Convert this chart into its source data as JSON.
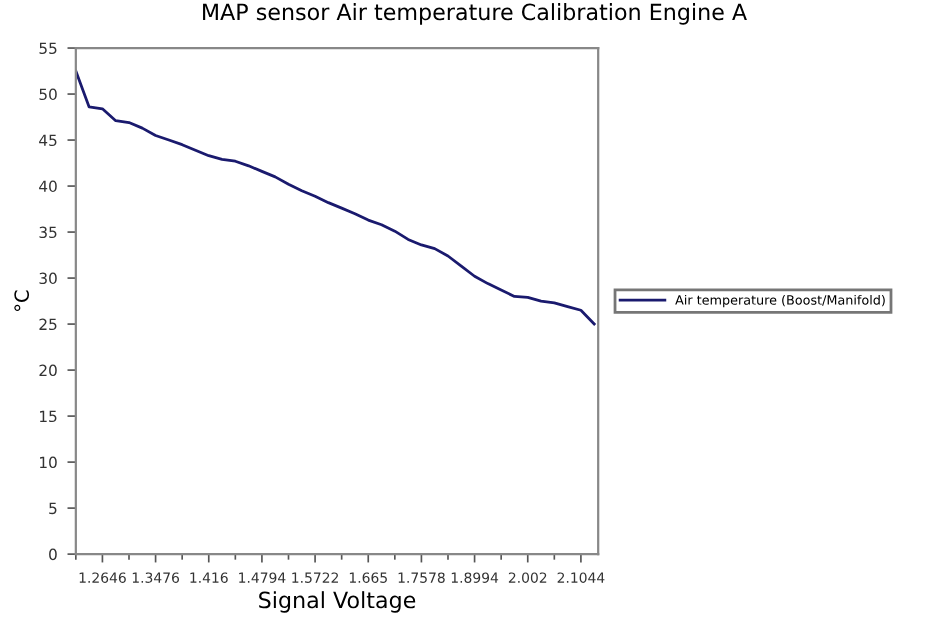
{
  "chart_data": {
    "type": "line",
    "title": "MAP sensor Air temperature Calibration Engine A",
    "xlabel": "Signal Voltage",
    "ylabel": "°C",
    "categories": [
      null,
      null,
      "1.2646",
      null,
      null,
      null,
      "1.3476",
      null,
      null,
      null,
      "1.416",
      null,
      null,
      null,
      "1.4794",
      null,
      null,
      null,
      "1.5722",
      null,
      null,
      null,
      "1.665",
      null,
      null,
      null,
      "1.7578",
      null,
      null,
      null,
      "1.8994",
      null,
      null,
      null,
      "2.002",
      null,
      null,
      null,
      "2.1044",
      null
    ],
    "series": [
      {
        "name": "Air temperature (Boost/Manifold)",
        "color": "#1a1a6e",
        "values": [
          52.5,
          48.6,
          48.4,
          47.1,
          46.9,
          46.3,
          45.5,
          45.0,
          44.5,
          43.9,
          43.3,
          42.9,
          42.7,
          42.2,
          41.6,
          41.0,
          40.2,
          39.5,
          38.9,
          38.2,
          37.6,
          37.0,
          36.3,
          35.8,
          35.1,
          34.2,
          33.6,
          33.2,
          32.4,
          31.3,
          30.2,
          29.4,
          28.7,
          28.0,
          27.9,
          27.5,
          27.3,
          26.9,
          26.5,
          25.0
        ]
      }
    ],
    "ylim": [
      0,
      55
    ],
    "yticks": [
      0,
      5,
      10,
      15,
      20,
      25,
      30,
      35,
      40,
      45,
      50,
      55
    ],
    "grid": false,
    "legend": "right"
  }
}
